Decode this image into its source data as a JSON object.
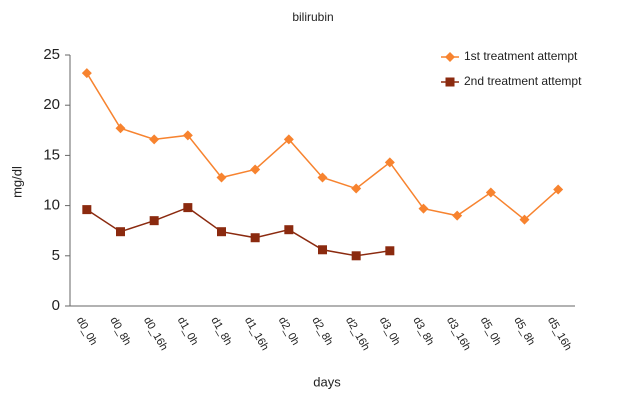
{
  "chart_data": {
    "type": "line",
    "title": "bilirubin",
    "x_label": "days",
    "y_label": "mg/dl",
    "categories": [
      "d0_0h",
      "d0_8h",
      "d0_16h",
      "d1_0h",
      "d1_8h",
      "d1_16h",
      "d2_0h",
      "d2_8h",
      "d2_16h",
      "d3_0h",
      "d3_8h",
      "d3_16h",
      "d5_0h",
      "d5_8h",
      "d5_16h"
    ],
    "series": [
      {
        "name": "1st treatment attempt",
        "color": "#f7832f",
        "marker": "diamond",
        "values": [
          23.2,
          17.7,
          16.6,
          17.0,
          12.8,
          13.6,
          16.6,
          12.8,
          11.7,
          14.3,
          9.7,
          9.0,
          11.3,
          8.6,
          11.6
        ]
      },
      {
        "name": "2nd treatment attempt",
        "color": "#8b2a0f",
        "marker": "square",
        "values": [
          9.6,
          7.4,
          8.5,
          9.8,
          7.4,
          6.8,
          7.6,
          5.6,
          5.0,
          5.5,
          null,
          null,
          null,
          null,
          null
        ]
      }
    ],
    "ylim": [
      0,
      25
    ],
    "yticks": [
      0,
      5,
      10,
      15,
      20,
      25
    ],
    "grid": false
  }
}
